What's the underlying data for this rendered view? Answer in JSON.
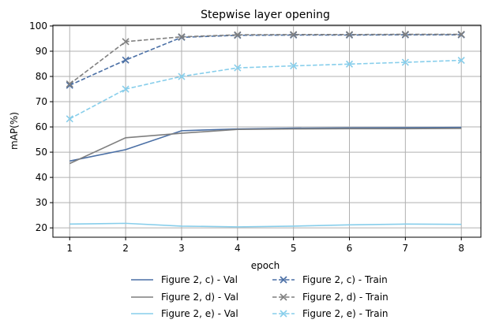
{
  "chart_data": {
    "type": "line",
    "title": "Stepwise layer opening",
    "xlabel": "epoch",
    "ylabel": "mAP(%)",
    "x": [
      1,
      2,
      3,
      4,
      5,
      6,
      7,
      8
    ],
    "xlim": [
      0.7,
      8.35
    ],
    "ylim": [
      16.3,
      100.3
    ],
    "xticks": [
      1,
      2,
      3,
      4,
      5,
      6,
      7,
      8
    ],
    "yticks": [
      20,
      30,
      40,
      50,
      60,
      70,
      80,
      90,
      100
    ],
    "grid": true,
    "legend_placement": "below plot, two columns",
    "series": [
      {
        "name": "Figure 2, c) - Val",
        "color": "#4a6fa5",
        "dash": "solid",
        "marker": "none",
        "values": [
          46.5,
          51.0,
          58.5,
          59.2,
          59.5,
          59.6,
          59.7,
          59.8
        ]
      },
      {
        "name": "Figure 2, d) - Val",
        "color": "#7f7f7f",
        "dash": "solid",
        "marker": "none",
        "values": [
          45.5,
          55.7,
          57.5,
          59.0,
          59.2,
          59.3,
          59.3,
          59.4
        ]
      },
      {
        "name": "Figure 2, e) - Val",
        "color": "#87ceeb",
        "dash": "solid",
        "marker": "none",
        "values": [
          21.5,
          21.8,
          20.7,
          20.4,
          20.7,
          21.2,
          21.5,
          21.4
        ]
      },
      {
        "name": "Figure 2, c) - Train",
        "color": "#4a6fa5",
        "dash": "dashed",
        "marker": "x",
        "values": [
          76.5,
          86.5,
          95.5,
          96.3,
          96.4,
          96.4,
          96.5,
          96.5
        ]
      },
      {
        "name": "Figure 2, d) - Train",
        "color": "#7f7f7f",
        "dash": "dashed",
        "marker": "x",
        "values": [
          77.0,
          93.8,
          95.7,
          96.5,
          96.6,
          96.6,
          96.7,
          96.7
        ]
      },
      {
        "name": "Figure 2, e) - Train",
        "color": "#87ceeb",
        "dash": "dashed",
        "marker": "x",
        "values": [
          63.2,
          75.0,
          80.0,
          83.4,
          84.2,
          84.9,
          85.6,
          86.4
        ]
      }
    ]
  }
}
